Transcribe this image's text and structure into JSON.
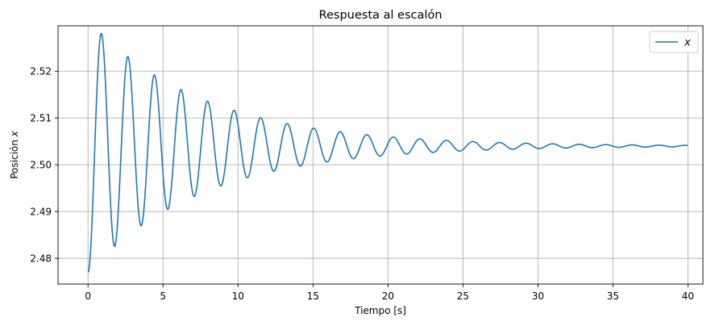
{
  "chart_data": {
    "type": "line",
    "title": "Respuesta al escalón",
    "xlabel": "Tiempo [s]",
    "ylabel_prefix": "Posición ",
    "ylabel_var": "x",
    "xlim": [
      -2,
      41
    ],
    "ylim": [
      2.4745,
      2.5297
    ],
    "xticks": [
      0,
      5,
      10,
      15,
      20,
      25,
      30,
      35,
      40
    ],
    "yticks": [
      2.48,
      2.49,
      2.5,
      2.51,
      2.52
    ],
    "ytick_labels": [
      "2.48",
      "2.49",
      "2.50",
      "2.51",
      "2.52"
    ],
    "grid": true,
    "legend_position": "top-right",
    "series": [
      {
        "name": "x",
        "color": "#1f77b4",
        "model": "damped-oscillation",
        "x_start": 0,
        "x_end": 40,
        "final_value": 2.504,
        "initial_value": 2.477,
        "period": 1.77,
        "decay_rate": 0.13,
        "samples": [
          {
            "x": 0.0,
            "y": 2.477
          },
          {
            "x": 0.9,
            "y": 2.527
          },
          {
            "x": 1.8,
            "y": 2.4842
          },
          {
            "x": 2.65,
            "y": 2.521
          },
          {
            "x": 3.55,
            "y": 2.4893
          },
          {
            "x": 4.4,
            "y": 2.5168
          },
          {
            "x": 5.3,
            "y": 2.493
          },
          {
            "x": 6.2,
            "y": 2.5135
          },
          {
            "x": 7.1,
            "y": 2.496
          },
          {
            "x": 7.95,
            "y": 2.511
          },
          {
            "x": 8.85,
            "y": 2.4981
          },
          {
            "x": 9.75,
            "y": 2.5093
          },
          {
            "x": 10.65,
            "y": 2.4995
          },
          {
            "x": 11.5,
            "y": 2.5079
          },
          {
            "x": 12.4,
            "y": 2.5007
          },
          {
            "x": 13.3,
            "y": 2.5069
          },
          {
            "x": 14.2,
            "y": 2.5016
          },
          {
            "x": 15.05,
            "y": 2.5061
          },
          {
            "x": 20.3,
            "y": 2.5048
          },
          {
            "x": 25.0,
            "y": 2.5036
          },
          {
            "x": 30.0,
            "y": 2.5039
          },
          {
            "x": 40.0,
            "y": 2.504
          }
        ]
      }
    ]
  }
}
